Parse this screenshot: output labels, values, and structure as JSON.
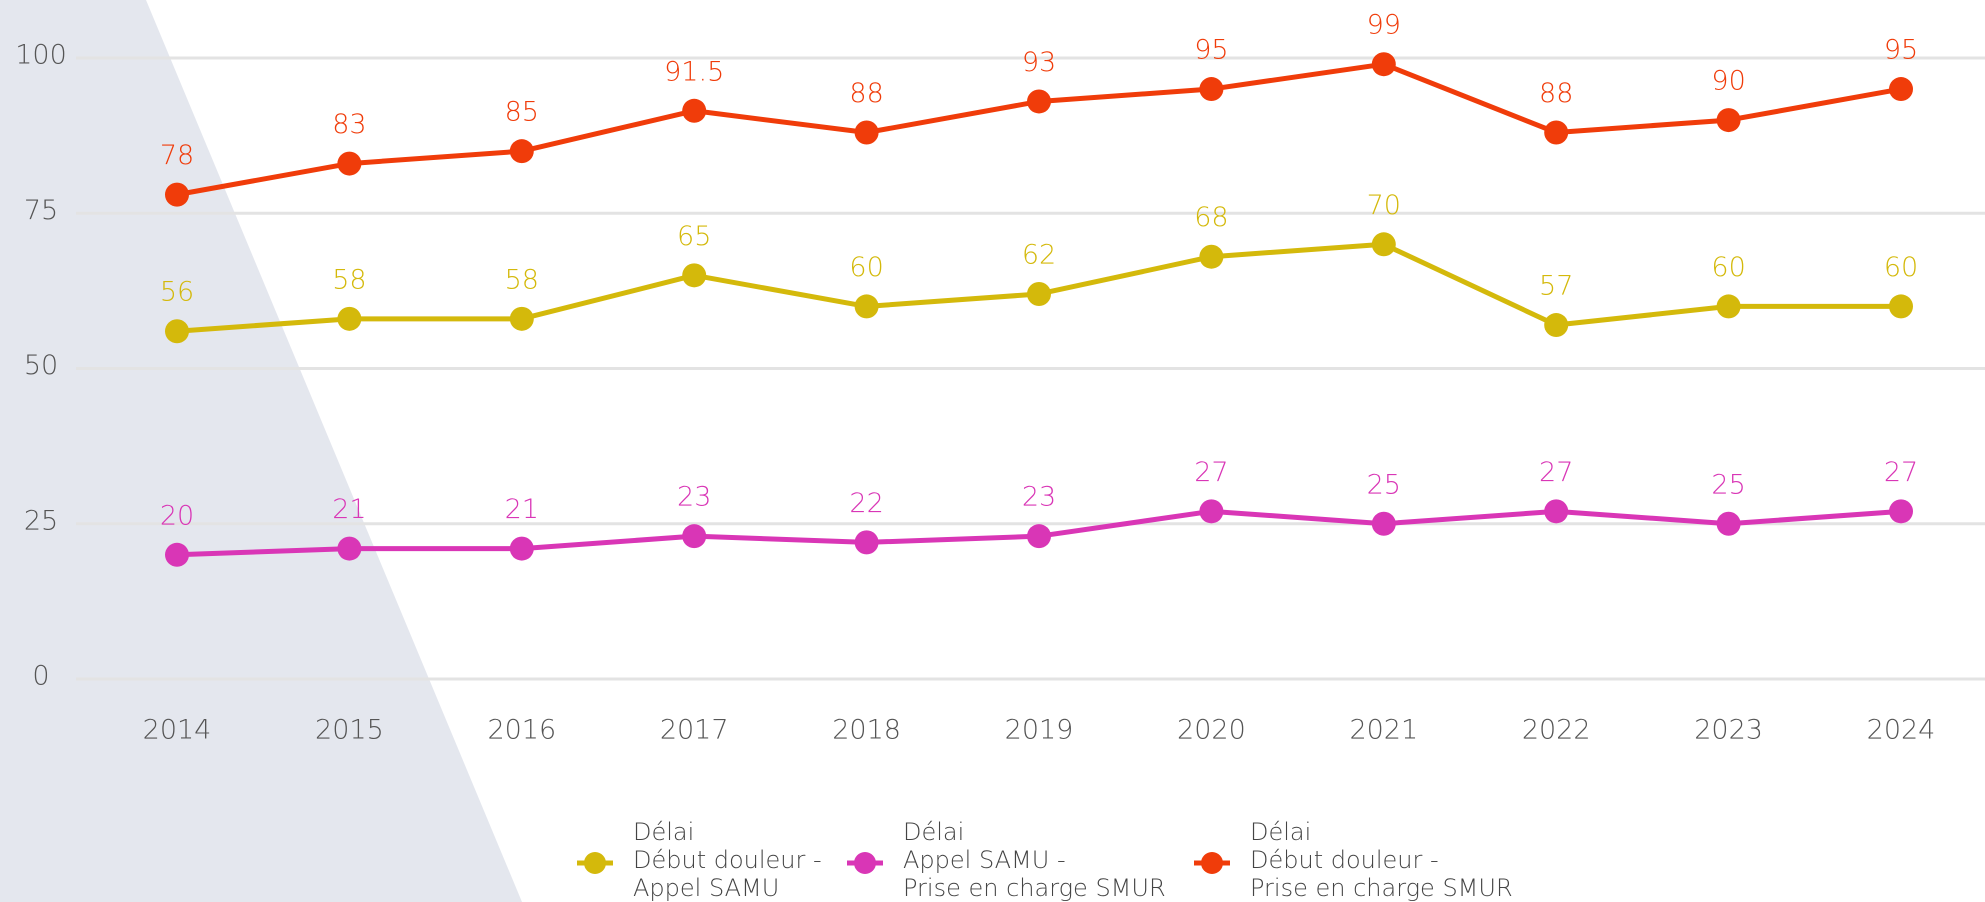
{
  "chart_data": {
    "type": "line",
    "x": [
      2014,
      2015,
      2016,
      2017,
      2018,
      2019,
      2020,
      2021,
      2022,
      2023,
      2024
    ],
    "xlim": [
      2014,
      2024
    ],
    "xticks": [
      2014,
      2015,
      2016,
      2017,
      2018,
      2019,
      2020,
      2021,
      2022,
      2023,
      2024
    ],
    "ylim": [
      0,
      100
    ],
    "yticks": [
      0,
      25,
      50,
      75,
      100
    ],
    "grid": true,
    "legend": "bottom",
    "series": [
      {
        "name": "Délai\nDébut douleur -\nAppel SAMU",
        "color": "#d4b90b",
        "values": [
          56,
          58,
          58,
          65,
          60,
          62,
          68,
          70,
          57,
          60,
          60
        ]
      },
      {
        "name": "Délai\nAppel SAMU -\nPrise en charge SMUR",
        "color": "#d936b6",
        "values": [
          20,
          21,
          21,
          23,
          22,
          23,
          27,
          25,
          27,
          25,
          27
        ]
      },
      {
        "name": "Délai\nDébut douleur -\nPrise en charge SMUR",
        "color": "#f03c0a",
        "values": [
          78,
          83,
          85,
          91.5,
          88,
          93,
          95,
          99,
          88,
          90,
          95
        ]
      }
    ]
  }
}
